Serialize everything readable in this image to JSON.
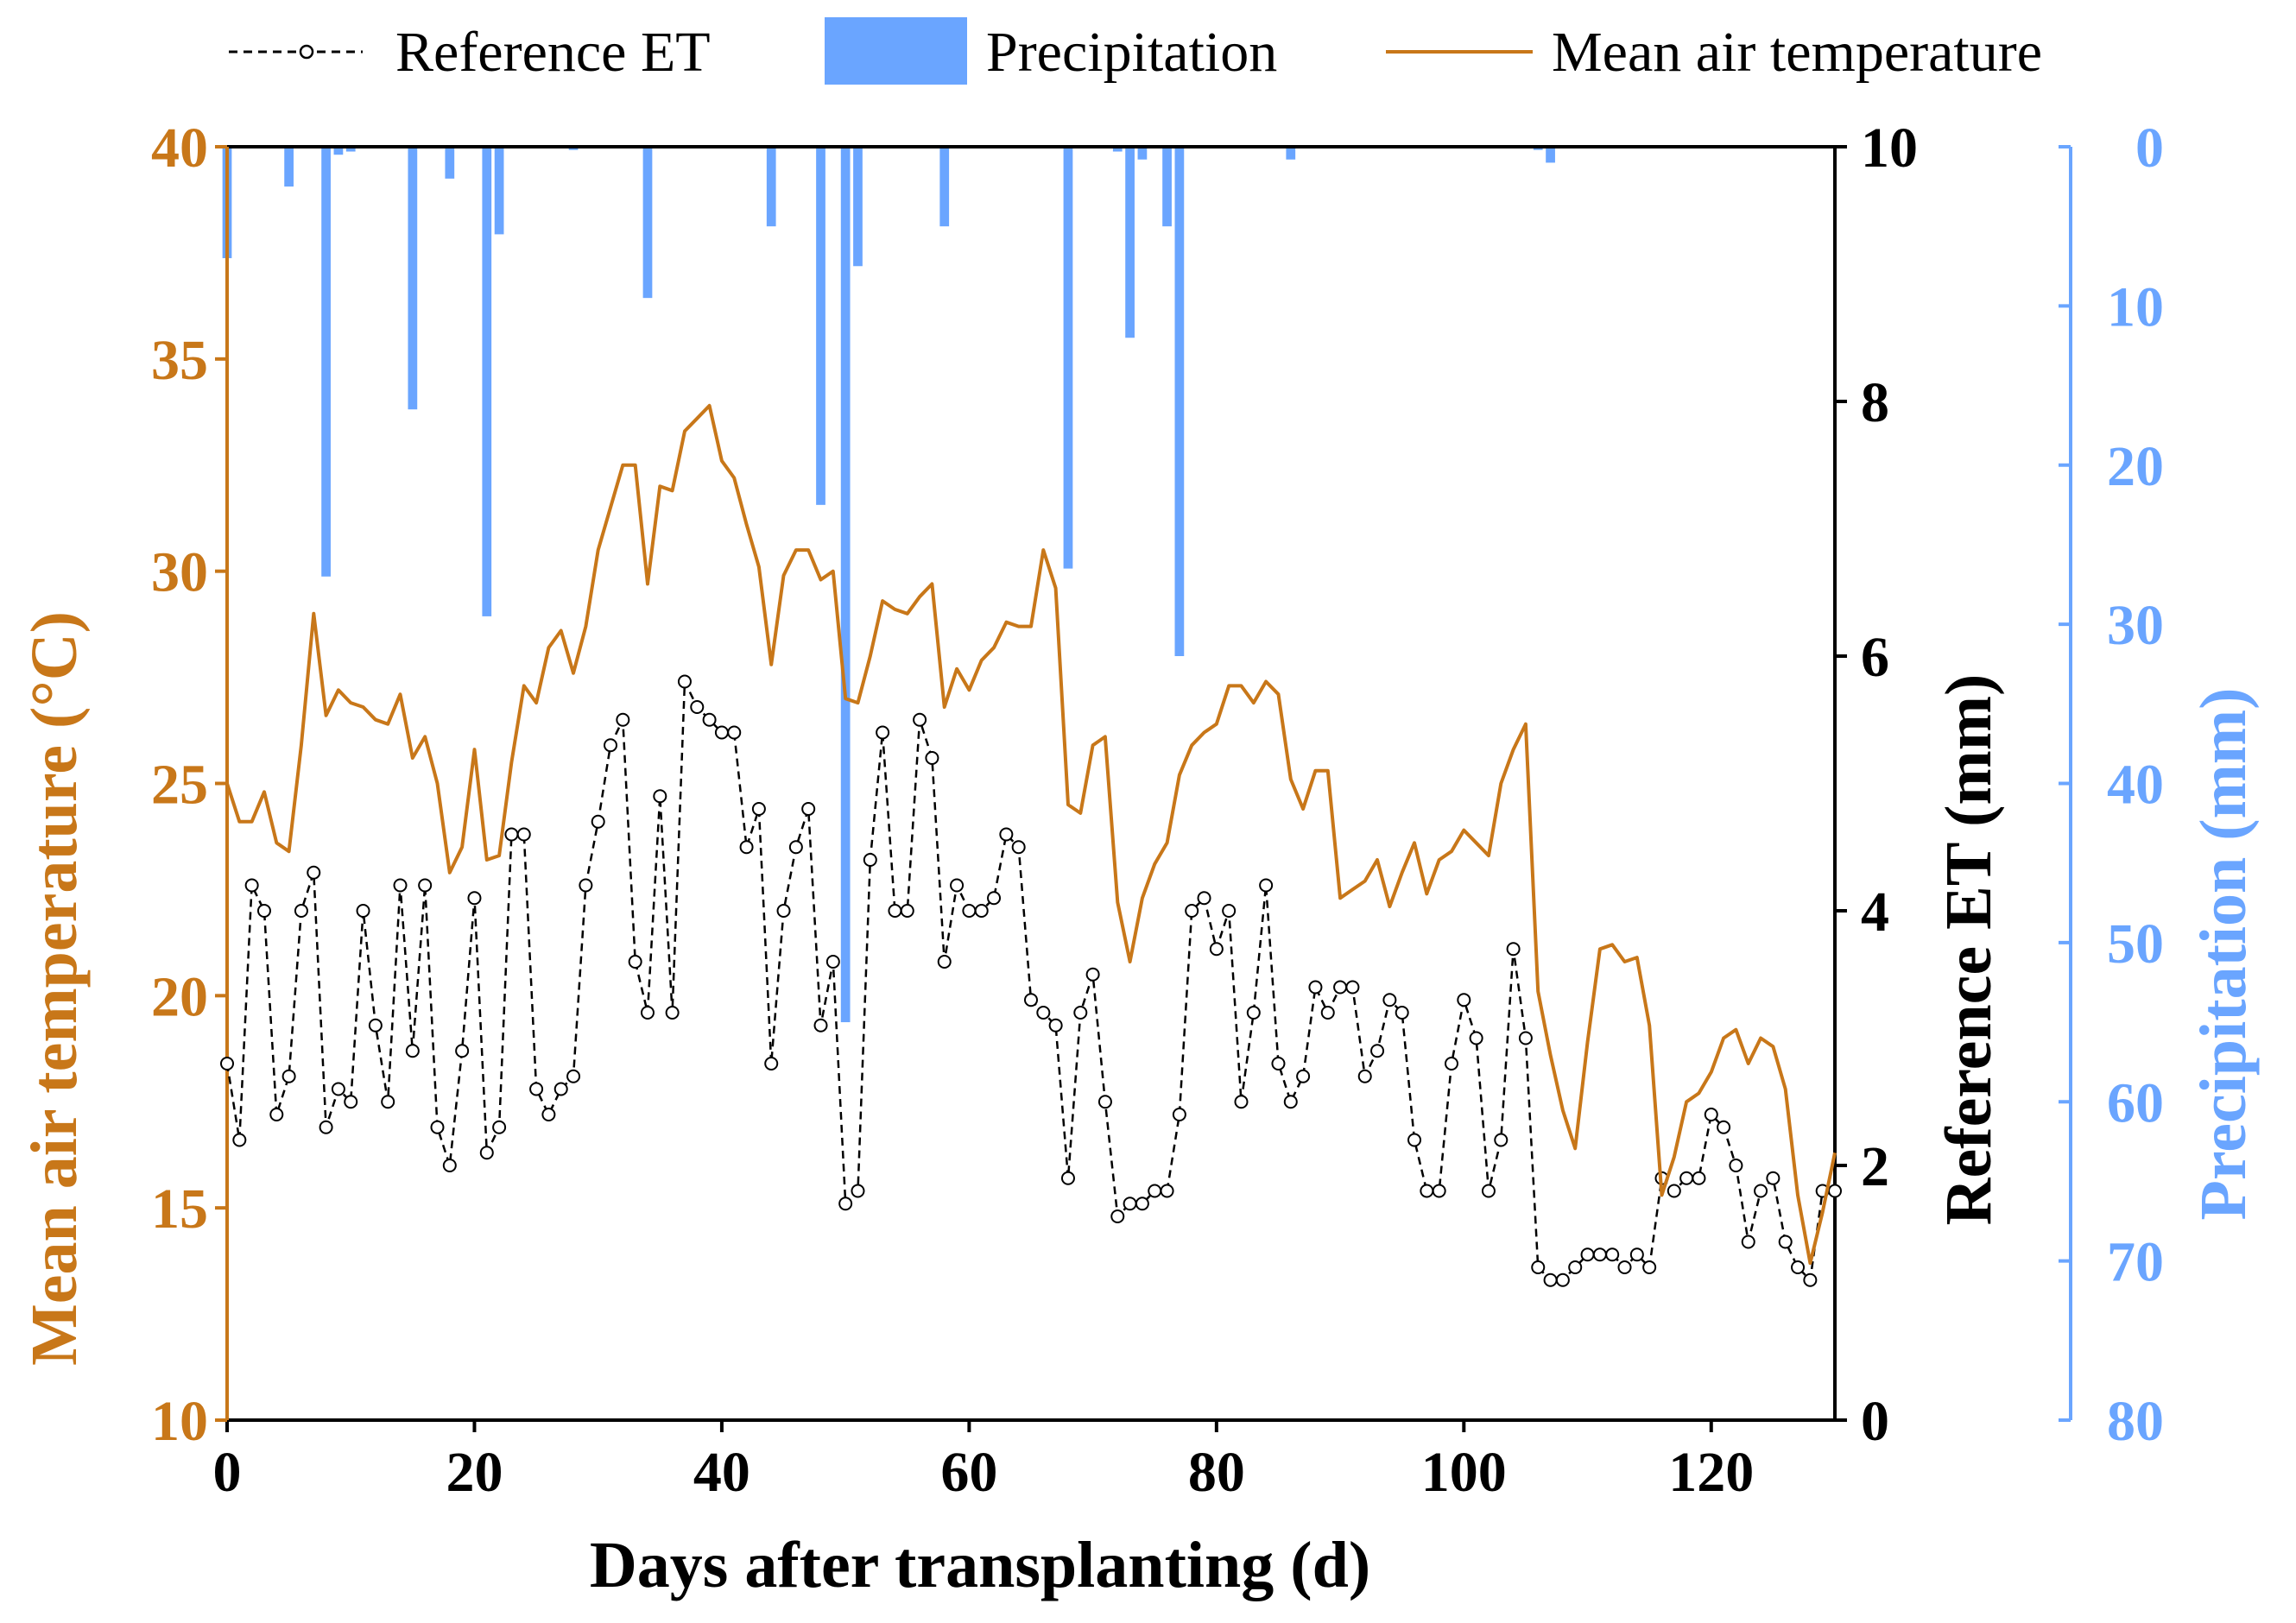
{
  "chart_data": {
    "type": "line",
    "legend": {
      "position": "top",
      "entries": [
        {
          "label": "Reference ET",
          "style": "dashed-line-circles"
        },
        {
          "label": "Precipitation",
          "style": "bar"
        },
        {
          "label": "Mean air temperature",
          "style": "solid-line"
        }
      ]
    },
    "xlabel": "Days after transplanting (d)",
    "xlim": [
      0,
      130
    ],
    "xticks": [
      "0",
      "20",
      "40",
      "60",
      "80",
      "100",
      "120"
    ],
    "y_left": {
      "label": "Mean air temperature (°C)",
      "lim": [
        10,
        40
      ],
      "ticks": [
        "10",
        "15",
        "20",
        "25",
        "30",
        "35",
        "40"
      ]
    },
    "y_right_1": {
      "label": "Reference ET (mm)",
      "lim": [
        0,
        10
      ],
      "ticks": [
        "0",
        "2",
        "4",
        "6",
        "8",
        "10"
      ]
    },
    "y_right_2": {
      "label": "Precipitation (mm)",
      "lim": [
        0,
        80
      ],
      "inverted": true,
      "ticks": [
        "0",
        "10",
        "20",
        "30",
        "40",
        "50",
        "60",
        "70",
        "80"
      ]
    },
    "colors": {
      "temperature": "#c87719",
      "precipitation": "#6aa5ff",
      "et": "#000000"
    },
    "series": [
      {
        "name": "Mean air temperature",
        "axis": "left",
        "x": [
          0,
          1,
          2,
          3,
          4,
          5,
          6,
          7,
          8,
          9,
          10,
          11,
          12,
          13,
          14,
          15,
          16,
          17,
          18,
          19,
          20,
          21,
          22,
          23,
          24,
          25,
          26,
          27,
          28,
          29,
          30,
          31,
          32,
          33,
          34,
          35,
          36,
          37,
          38,
          39,
          40,
          41,
          42,
          43,
          44,
          45,
          46,
          47,
          48,
          49,
          50,
          51,
          52,
          53,
          54,
          55,
          56,
          57,
          58,
          59,
          60,
          61,
          62,
          63,
          64,
          65,
          66,
          67,
          68,
          69,
          70,
          71,
          72,
          73,
          74,
          75,
          76,
          77,
          78,
          79,
          80,
          81,
          82,
          83,
          84,
          85,
          86,
          87,
          88,
          89,
          90,
          91,
          92,
          93,
          94,
          95,
          96,
          97,
          98,
          99,
          100,
          101,
          102,
          103,
          104,
          105,
          106,
          107,
          108,
          109,
          110,
          111,
          112,
          113,
          114,
          115,
          116,
          117,
          118,
          119,
          120,
          121,
          122,
          123,
          124,
          125,
          126,
          127,
          128,
          129,
          130
        ],
        "values": [
          25.0,
          24.1,
          24.1,
          24.8,
          23.6,
          23.4,
          25.9,
          29.0,
          26.6,
          27.2,
          26.9,
          26.8,
          26.5,
          26.4,
          27.1,
          25.6,
          26.1,
          25.0,
          22.9,
          23.5,
          25.8,
          23.2,
          23.3,
          25.5,
          27.3,
          26.9,
          28.2,
          28.6,
          27.6,
          28.7,
          30.5,
          31.5,
          32.5,
          32.5,
          29.7,
          32.0,
          31.9,
          33.3,
          33.6,
          33.9,
          32.6,
          32.2,
          31.1,
          30.1,
          27.8,
          29.9,
          30.5,
          30.5,
          29.8,
          30.0,
          27.0,
          26.9,
          28.0,
          29.3,
          29.1,
          29.0,
          29.4,
          29.7,
          26.8,
          27.7,
          27.2,
          27.9,
          28.2,
          28.8,
          28.7,
          28.7,
          30.5,
          29.6,
          24.5,
          24.3,
          25.9,
          26.1,
          22.2,
          20.8,
          22.3,
          23.1,
          23.6,
          25.2,
          25.9,
          26.2,
          26.4,
          27.3,
          27.3,
          26.9,
          27.4,
          27.1,
          25.1,
          24.4,
          25.3,
          25.3,
          22.3,
          22.5,
          22.7,
          23.2,
          22.1,
          22.9,
          23.6,
          22.4,
          23.2,
          23.4,
          23.9,
          23.6,
          23.3,
          25.0,
          25.8,
          26.4,
          20.1,
          18.6,
          17.3,
          16.4,
          18.9,
          21.1,
          21.2,
          20.8,
          20.9,
          19.3,
          15.3,
          16.2,
          17.5,
          17.7,
          18.2,
          19.0,
          19.2,
          18.4,
          19.0,
          18.8,
          17.8,
          15.3,
          13.7,
          14.9,
          16.3
        ]
      },
      {
        "name": "Reference ET",
        "axis": "right_1",
        "x": [
          0,
          1,
          2,
          3,
          4,
          5,
          6,
          7,
          8,
          9,
          10,
          11,
          12,
          13,
          14,
          15,
          16,
          17,
          18,
          19,
          20,
          21,
          22,
          23,
          24,
          25,
          26,
          27,
          28,
          29,
          30,
          31,
          32,
          33,
          34,
          35,
          36,
          37,
          38,
          39,
          40,
          41,
          42,
          43,
          44,
          45,
          46,
          47,
          48,
          49,
          50,
          51,
          52,
          53,
          54,
          55,
          56,
          57,
          58,
          59,
          60,
          61,
          62,
          63,
          64,
          65,
          66,
          67,
          68,
          69,
          70,
          71,
          72,
          73,
          74,
          75,
          76,
          77,
          78,
          79,
          80,
          81,
          82,
          83,
          84,
          85,
          86,
          87,
          88,
          89,
          90,
          91,
          92,
          93,
          94,
          95,
          96,
          97,
          98,
          99,
          100,
          101,
          102,
          103,
          104,
          105,
          106,
          107,
          108,
          109,
          110,
          111,
          112,
          113,
          114,
          115,
          116,
          117,
          118,
          119,
          120,
          121,
          122,
          123,
          124,
          125,
          126,
          127,
          128,
          129,
          130
        ],
        "values": [
          2.8,
          2.2,
          4.2,
          4.0,
          2.4,
          2.7,
          4.0,
          4.3,
          2.3,
          2.6,
          2.5,
          4.0,
          3.1,
          2.5,
          4.2,
          2.9,
          4.2,
          2.3,
          2.0,
          2.9,
          4.1,
          2.1,
          2.3,
          4.6,
          4.6,
          2.6,
          2.4,
          2.6,
          2.7,
          4.2,
          4.7,
          5.3,
          5.5,
          3.6,
          3.2,
          4.9,
          3.2,
          5.8,
          5.6,
          5.5,
          5.4,
          5.4,
          4.5,
          4.8,
          2.8,
          4.0,
          4.5,
          4.8,
          3.1,
          3.6,
          1.7,
          1.8,
          4.4,
          5.4,
          4.0,
          4.0,
          5.5,
          5.2,
          3.6,
          4.2,
          4.0,
          4.0,
          4.1,
          4.6,
          4.5,
          3.3,
          3.2,
          3.1,
          1.9,
          3.2,
          3.5,
          2.5,
          1.6,
          1.7,
          1.7,
          1.8,
          1.8,
          2.4,
          4.0,
          4.1,
          3.7,
          4.0,
          2.5,
          3.2,
          4.2,
          2.8,
          2.5,
          2.7,
          3.4,
          3.2,
          3.4,
          3.4,
          2.7,
          2.9,
          3.3,
          3.2,
          2.2,
          1.8,
          1.8,
          2.8,
          3.3,
          3.0,
          1.8,
          2.2,
          3.7,
          3.0,
          1.2,
          1.1,
          1.1,
          1.2,
          1.3,
          1.3,
          1.3,
          1.2,
          1.3,
          1.2,
          1.9,
          1.8,
          1.9,
          1.9,
          2.4,
          2.3,
          2.0,
          1.4,
          1.8,
          1.9,
          1.4,
          1.2,
          1.1,
          1.8,
          1.8
        ]
      },
      {
        "name": "Precipitation",
        "axis": "right_2",
        "type": "bar",
        "x": [
          0,
          5,
          8,
          9,
          10,
          15,
          18,
          21,
          22,
          28,
          34,
          44,
          48,
          50,
          51,
          58,
          68,
          72,
          73,
          74,
          76,
          77,
          86,
          106,
          107
        ],
        "values": [
          7,
          2.5,
          27,
          0.5,
          0.3,
          16.5,
          2,
          29.5,
          5.5,
          0.2,
          9.5,
          5,
          22.5,
          55,
          7.5,
          5,
          26.5,
          0.3,
          12,
          0.8,
          5,
          32,
          0.8,
          0.2,
          1
        ]
      }
    ]
  }
}
